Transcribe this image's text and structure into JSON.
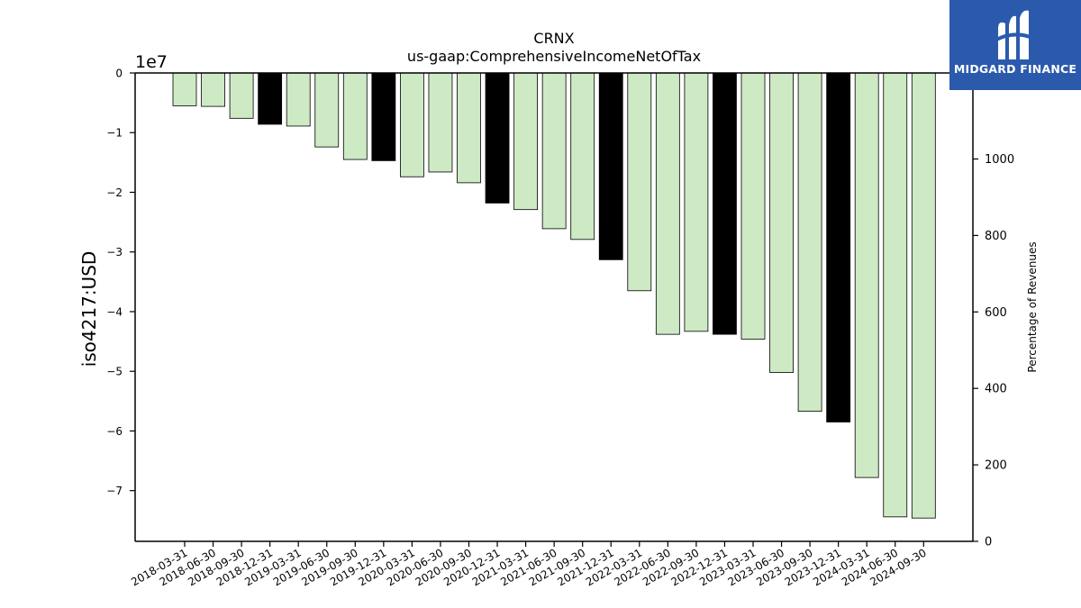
{
  "chart_data": {
    "type": "bar",
    "title": "CRNX",
    "subtitle": "us-gaap:ComprehensiveIncomeNetOfTax",
    "ylabel": "iso4217:USD",
    "y_offset_label": "1e7",
    "y2label": "Percentage of Revenues",
    "ylim": [
      -7.85,
      0
    ],
    "y_ticks": [
      0,
      -1,
      -2,
      -3,
      -4,
      -5,
      -6,
      -7
    ],
    "y_tick_labels": [
      "0",
      "−1",
      "−2",
      "−3",
      "−4",
      "−5",
      "−6",
      "−7"
    ],
    "y2lim": [
      0,
      1225
    ],
    "y2_ticks": [
      0,
      200,
      400,
      600,
      800,
      1000
    ],
    "y2_tick_labels": [
      "0",
      "200",
      "400",
      "600",
      "800",
      "1000"
    ],
    "categories": [
      "2018-03-31",
      "2018-06-30",
      "2018-09-30",
      "2018-12-31",
      "2019-03-31",
      "2019-06-30",
      "2019-09-30",
      "2019-12-31",
      "2020-03-31",
      "2020-06-30",
      "2020-09-30",
      "2020-12-31",
      "2021-03-31",
      "2021-06-30",
      "2021-09-30",
      "2021-12-31",
      "2022-03-31",
      "2022-06-30",
      "2022-09-30",
      "2022-12-31",
      "2023-03-31",
      "2023-06-30",
      "2023-09-30",
      "2023-12-31",
      "2024-03-31",
      "2024-06-30",
      "2024-09-30"
    ],
    "values": [
      -0.55,
      -0.56,
      -0.76,
      -0.86,
      -0.89,
      -1.24,
      -1.45,
      -1.47,
      -1.74,
      -1.66,
      -1.84,
      -2.18,
      -2.29,
      -2.61,
      -2.79,
      -3.13,
      -3.65,
      -4.38,
      -4.33,
      -4.38,
      -4.46,
      -5.02,
      -5.67,
      -5.85,
      -6.78,
      -7.44,
      -7.46
    ],
    "annual_flags": [
      false,
      false,
      false,
      true,
      false,
      false,
      false,
      true,
      false,
      false,
      false,
      true,
      false,
      false,
      false,
      true,
      false,
      false,
      false,
      true,
      false,
      false,
      false,
      true,
      false,
      false,
      false
    ],
    "colors": {
      "quarter": "#cdeac5",
      "annual": "#000000",
      "edge": "#000000"
    }
  },
  "logo": {
    "text": "MIDGARD FINANCE",
    "background": "#2b5aad"
  }
}
